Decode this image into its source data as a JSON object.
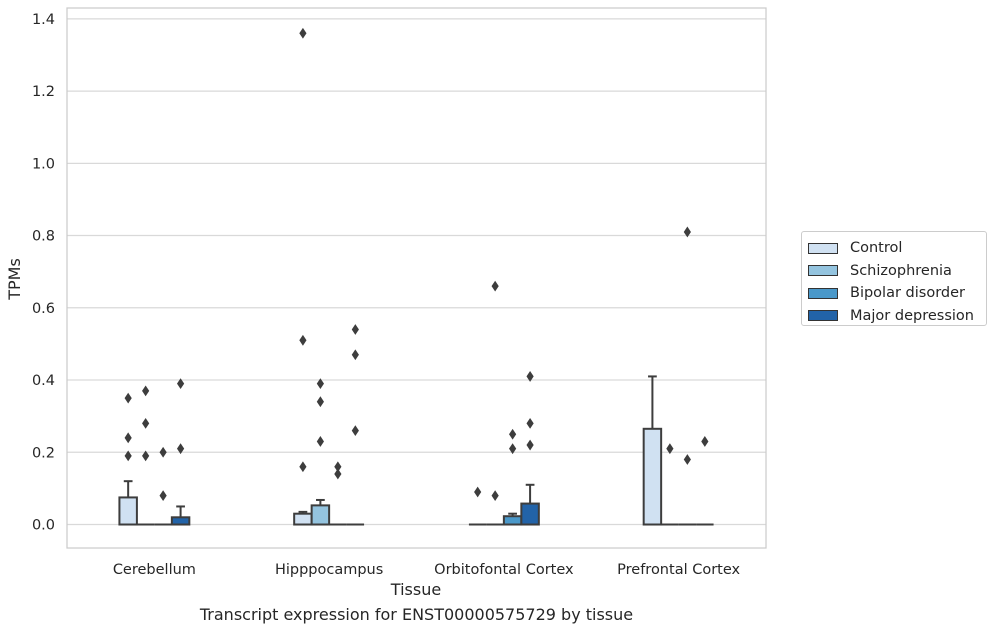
{
  "chart_data": {
    "type": "box",
    "title": "",
    "xlabel": "Tissue",
    "ylabel": "TPMs",
    "caption": "Transcript expression for ENST00000575729 by tissue",
    "categories": [
      "Cerebellum",
      "Hipppocampus",
      "Orbitofontal Cortex",
      "Prefrontal Cortex"
    ],
    "ylim": [
      -0.065,
      1.43
    ],
    "yticks": [
      "0.0",
      "0.2",
      "0.4",
      "0.6",
      "0.8",
      "1.0",
      "1.2",
      "1.4"
    ],
    "grid": true,
    "legend_position": "right",
    "series": [
      {
        "name": "Control",
        "color": "#d0e1f2",
        "boxes": [
          {
            "q1": 0.0,
            "median": 0.0,
            "q3": 0.075,
            "whisker_low": 0.0,
            "whisker_high": 0.12,
            "outliers": [
              0.19,
              0.24,
              0.35
            ]
          },
          {
            "q1": 0.0,
            "median": 0.0,
            "q3": 0.03,
            "whisker_low": 0.0,
            "whisker_high": 0.035,
            "outliers": [
              0.16,
              0.51,
              1.36
            ]
          },
          {
            "q1": 0.0,
            "median": 0.0,
            "q3": 0.0,
            "whisker_low": 0.0,
            "whisker_high": 0.0,
            "outliers": [
              0.09
            ]
          },
          {
            "q1": 0.0,
            "median": 0.0,
            "q3": 0.265,
            "whisker_low": 0.0,
            "whisker_high": 0.41,
            "outliers": []
          }
        ]
      },
      {
        "name": "Schizophrenia",
        "color": "#94c4df",
        "boxes": [
          {
            "q1": 0.0,
            "median": 0.0,
            "q3": 0.0,
            "whisker_low": 0.0,
            "whisker_high": 0.0,
            "outliers": [
              0.19,
              0.28,
              0.37
            ]
          },
          {
            "q1": 0.0,
            "median": 0.0,
            "q3": 0.053,
            "whisker_low": 0.0,
            "whisker_high": 0.068,
            "outliers": [
              0.23,
              0.34,
              0.39
            ]
          },
          {
            "q1": 0.0,
            "median": 0.0,
            "q3": 0.0,
            "whisker_low": 0.0,
            "whisker_high": 0.0,
            "outliers": [
              0.08,
              0.66
            ]
          },
          {
            "q1": 0.0,
            "median": 0.0,
            "q3": 0.0,
            "whisker_low": 0.0,
            "whisker_high": 0.0,
            "outliers": [
              0.21
            ]
          }
        ]
      },
      {
        "name": "Bipolar disorder",
        "color": "#4a98c9",
        "boxes": [
          {
            "q1": 0.0,
            "median": 0.0,
            "q3": 0.0,
            "whisker_low": 0.0,
            "whisker_high": 0.0,
            "outliers": [
              0.08,
              0.2
            ]
          },
          {
            "q1": 0.0,
            "median": 0.0,
            "q3": 0.0,
            "whisker_low": 0.0,
            "whisker_high": 0.0,
            "outliers": [
              0.14,
              0.16
            ]
          },
          {
            "q1": 0.0,
            "median": 0.0,
            "q3": 0.023,
            "whisker_low": 0.0,
            "whisker_high": 0.03,
            "outliers": [
              0.21,
              0.25
            ]
          },
          {
            "q1": 0.0,
            "median": 0.0,
            "q3": 0.0,
            "whisker_low": 0.0,
            "whisker_high": 0.0,
            "outliers": [
              0.18,
              0.81
            ]
          }
        ]
      },
      {
        "name": "Major depression",
        "color": "#2263a8",
        "boxes": [
          {
            "q1": 0.0,
            "median": 0.0,
            "q3": 0.02,
            "whisker_low": 0.0,
            "whisker_high": 0.05,
            "outliers": [
              0.21,
              0.39
            ]
          },
          {
            "q1": 0.0,
            "median": 0.0,
            "q3": 0.0,
            "whisker_low": 0.0,
            "whisker_high": 0.0,
            "outliers": [
              0.26,
              0.47,
              0.54
            ]
          },
          {
            "q1": 0.0,
            "median": 0.0,
            "q3": 0.058,
            "whisker_low": 0.0,
            "whisker_high": 0.11,
            "outliers": [
              0.22,
              0.28,
              0.41
            ]
          },
          {
            "q1": 0.0,
            "median": 0.0,
            "q3": 0.0,
            "whisker_low": 0.0,
            "whisker_high": 0.0,
            "outliers": [
              0.23
            ]
          }
        ]
      }
    ]
  }
}
